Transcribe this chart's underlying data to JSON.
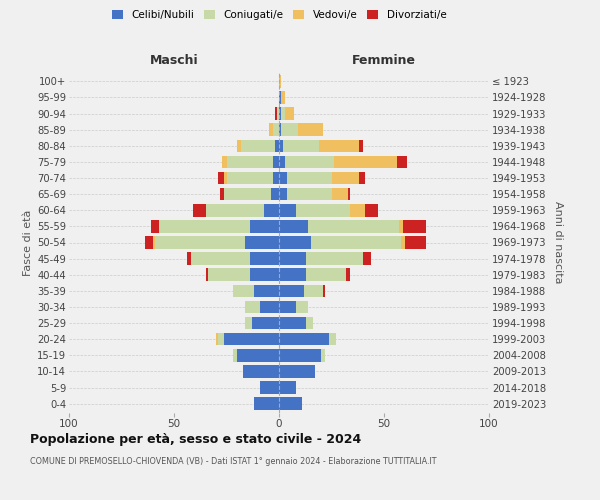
{
  "age_groups": [
    "0-4",
    "5-9",
    "10-14",
    "15-19",
    "20-24",
    "25-29",
    "30-34",
    "35-39",
    "40-44",
    "45-49",
    "50-54",
    "55-59",
    "60-64",
    "65-69",
    "70-74",
    "75-79",
    "80-84",
    "85-89",
    "90-94",
    "95-99",
    "100+"
  ],
  "birth_years": [
    "2019-2023",
    "2014-2018",
    "2009-2013",
    "2004-2008",
    "1999-2003",
    "1994-1998",
    "1989-1993",
    "1984-1988",
    "1979-1983",
    "1974-1978",
    "1969-1973",
    "1964-1968",
    "1959-1963",
    "1954-1958",
    "1949-1953",
    "1944-1948",
    "1939-1943",
    "1934-1938",
    "1929-1933",
    "1924-1928",
    "≤ 1923"
  ],
  "colors": {
    "celibi": "#4472c4",
    "coniugati": "#c8d9a8",
    "vedovi": "#f0c060",
    "divorziati": "#cc2222"
  },
  "maschi": {
    "celibi": [
      12,
      9,
      17,
      20,
      26,
      13,
      9,
      12,
      14,
      14,
      16,
      14,
      7,
      4,
      3,
      3,
      2,
      0,
      0,
      0,
      0
    ],
    "coniugati": [
      0,
      0,
      0,
      2,
      3,
      3,
      7,
      10,
      20,
      28,
      43,
      43,
      28,
      22,
      22,
      22,
      16,
      3,
      1,
      0,
      0
    ],
    "vedovi": [
      0,
      0,
      0,
      0,
      1,
      0,
      0,
      0,
      0,
      0,
      1,
      0,
      0,
      0,
      1,
      2,
      2,
      2,
      0,
      0,
      0
    ],
    "divorziati": [
      0,
      0,
      0,
      0,
      0,
      0,
      0,
      0,
      1,
      2,
      4,
      4,
      6,
      2,
      3,
      0,
      0,
      0,
      1,
      0,
      0
    ]
  },
  "femmine": {
    "celibi": [
      11,
      8,
      17,
      20,
      24,
      13,
      8,
      12,
      13,
      13,
      15,
      14,
      8,
      4,
      4,
      3,
      2,
      1,
      1,
      1,
      0
    ],
    "coniugati": [
      0,
      0,
      0,
      2,
      3,
      3,
      6,
      9,
      19,
      27,
      43,
      43,
      26,
      21,
      21,
      23,
      17,
      8,
      2,
      0,
      0
    ],
    "vedovi": [
      0,
      0,
      0,
      0,
      0,
      0,
      0,
      0,
      0,
      0,
      2,
      2,
      7,
      8,
      13,
      30,
      19,
      12,
      4,
      2,
      1
    ],
    "divorziati": [
      0,
      0,
      0,
      0,
      0,
      0,
      0,
      1,
      2,
      4,
      10,
      11,
      6,
      1,
      3,
      5,
      2,
      0,
      0,
      0,
      0
    ]
  },
  "xlim": 100,
  "title": "Popolazione per età, sesso e stato civile - 2024",
  "subtitle": "COMUNE DI PREMOSELLO-CHIOVENDA (VB) - Dati ISTAT 1° gennaio 2024 - Elaborazione TUTTITALIA.IT",
  "ylabel": "Fasce di età",
  "ylabel2": "Anni di nascita",
  "xlabel_left": "Maschi",
  "xlabel_right": "Femmine",
  "legend_labels": [
    "Celibi/Nubili",
    "Coniugati/e",
    "Vedovi/e",
    "Divorziati/e"
  ],
  "bg_color": "#f0f0f0",
  "bar_height": 0.78
}
